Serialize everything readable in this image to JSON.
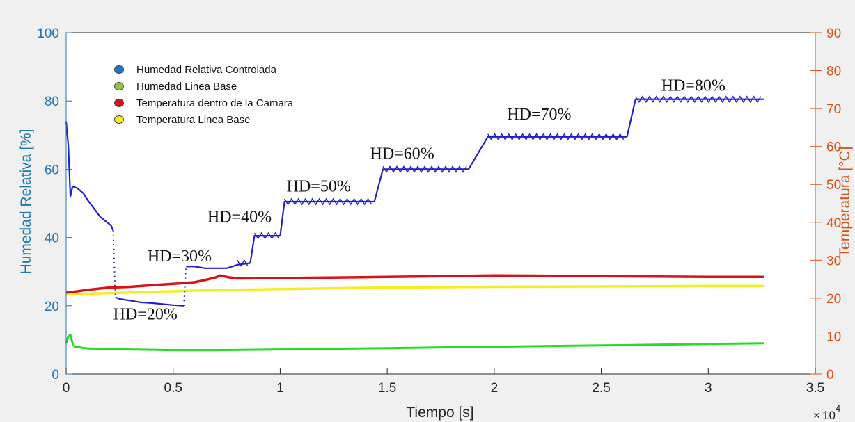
{
  "chart_data": {
    "type": "line",
    "xlabel": "Tiempo [s]",
    "ylabel": "Humedad Relativa [%]",
    "y2label": "Temperatura [°C]",
    "x_exponent": "10",
    "x_exponent_power": "4",
    "xlim": [
      0,
      3.5
    ],
    "ylim": [
      0,
      100
    ],
    "y2lim": [
      0,
      90
    ],
    "xticks": [
      "0",
      "0.5",
      "1",
      "1.5",
      "2",
      "2.5",
      "3",
      "3.5"
    ],
    "yticks": [
      "0",
      "20",
      "40",
      "60",
      "80",
      "100"
    ],
    "y2ticks": [
      "0",
      "10",
      "20",
      "30",
      "40",
      "50",
      "60",
      "70",
      "80",
      "90"
    ],
    "grid": false,
    "legend_position": "top-left",
    "colors": {
      "humedad_controlada": "#1f1fd0",
      "humedad_base": "#22dd22",
      "temp_camara": "#dd1111",
      "temp_base": "#f2ee22",
      "left_axis": "#1f77b4",
      "right_axis": "#d95319"
    },
    "legend": [
      {
        "label": "Humedad Relativa Controlada",
        "color": "#1f77c8"
      },
      {
        "label": "Humedad Linea Base",
        "color": "#8ec641"
      },
      {
        "label": "Temperatura dentro de la Camara",
        "color": "#dd1111"
      },
      {
        "label": "Temperatura Linea Base",
        "color": "#f2ee22"
      }
    ],
    "annotations": [
      {
        "text": "HD=20%",
        "x": 0.22,
        "y": 16
      },
      {
        "text": "HD=30%",
        "x": 0.38,
        "y": 33
      },
      {
        "text": "HD=40%",
        "x": 0.66,
        "y": 44.5
      },
      {
        "text": "HD=50%",
        "x": 1.03,
        "y": 53.5
      },
      {
        "text": "HD=60%",
        "x": 1.42,
        "y": 63
      },
      {
        "text": "HD=70%",
        "x": 2.06,
        "y": 74.5
      },
      {
        "text": "HD=80%",
        "x": 2.78,
        "y": 83
      }
    ],
    "series": [
      {
        "name": "Humedad Relativa Controlada",
        "axis": "left",
        "segments": [
          {
            "x": [
              0,
              0.01,
              0.02,
              0.03,
              0.05,
              0.08,
              0.1,
              0.13,
              0.16,
              0.19,
              0.21,
              0.22
            ],
            "y": [
              74,
              67,
              52,
              55,
              54.5,
              53,
              51,
              48.5,
              46,
              44.5,
              43.5,
              42
            ]
          },
          {
            "x": [
              0.23,
              0.25,
              0.3,
              0.35,
              0.4,
              0.45,
              0.5,
              0.55
            ],
            "y": [
              22.5,
              22,
              21.5,
              21,
              20.8,
              20.5,
              20.2,
              20
            ]
          },
          {
            "x": [
              0.56,
              0.6,
              0.65,
              0.7,
              0.75,
              0.8,
              0.86
            ],
            "y": [
              31.5,
              31.5,
              31,
              31,
              31,
              32,
              32.5
            ]
          },
          {
            "x": [
              0.86,
              0.88,
              1.0
            ],
            "y": [
              32.5,
              40.5,
              40.5
            ]
          },
          {
            "x": [
              1.0,
              1.02,
              1.44
            ],
            "y": [
              40.5,
              50.5,
              50.5
            ]
          },
          {
            "x": [
              1.44,
              1.48,
              1.88
            ],
            "y": [
              50.5,
              60,
              60
            ]
          },
          {
            "x": [
              1.88,
              1.97,
              2.62
            ],
            "y": [
              60,
              69.5,
              69.5
            ]
          },
          {
            "x": [
              2.62,
              2.66,
              3.26
            ],
            "y": [
              69.5,
              80.5,
              80.5
            ]
          }
        ]
      },
      {
        "name": "Humedad Linea Base",
        "axis": "left",
        "segments": [
          {
            "x": [
              0,
              0.01,
              0.02,
              0.03,
              0.04,
              0.1,
              0.3,
              0.5,
              0.7,
              1.0,
              1.5,
              2.0,
              2.5,
              3.0,
              3.26
            ],
            "y": [
              9,
              11,
              11.5,
              9,
              8,
              7.5,
              7.2,
              7,
              7,
              7.2,
              7.6,
              8,
              8.4,
              8.8,
              9
            ]
          }
        ]
      },
      {
        "name": "Temperatura dentro de la Camara",
        "axis": "right",
        "segments": [
          {
            "x": [
              0,
              0.05,
              0.1,
              0.2,
              0.3,
              0.4,
              0.5,
              0.6,
              0.65,
              0.7,
              0.72,
              0.76,
              0.8,
              1.0,
              1.5,
              2.0,
              2.5,
              3.0,
              3.26
            ],
            "y": [
              21.5,
              21.8,
              22.2,
              22.8,
              23,
              23.4,
              23.8,
              24.2,
              24.8,
              25.5,
              26,
              25.5,
              25.2,
              25.3,
              25.6,
              26,
              25.8,
              25.6,
              25.6
            ]
          }
        ]
      },
      {
        "name": "Temperatura Linea Base",
        "axis": "right",
        "segments": [
          {
            "x": [
              0,
              0.3,
              0.6,
              1.0,
              1.5,
              2.0,
              2.5,
              3.0,
              3.26
            ],
            "y": [
              21,
              21.5,
              22,
              22.4,
              22.8,
              23,
              23.1,
              23.2,
              23.2
            ]
          }
        ]
      }
    ]
  }
}
